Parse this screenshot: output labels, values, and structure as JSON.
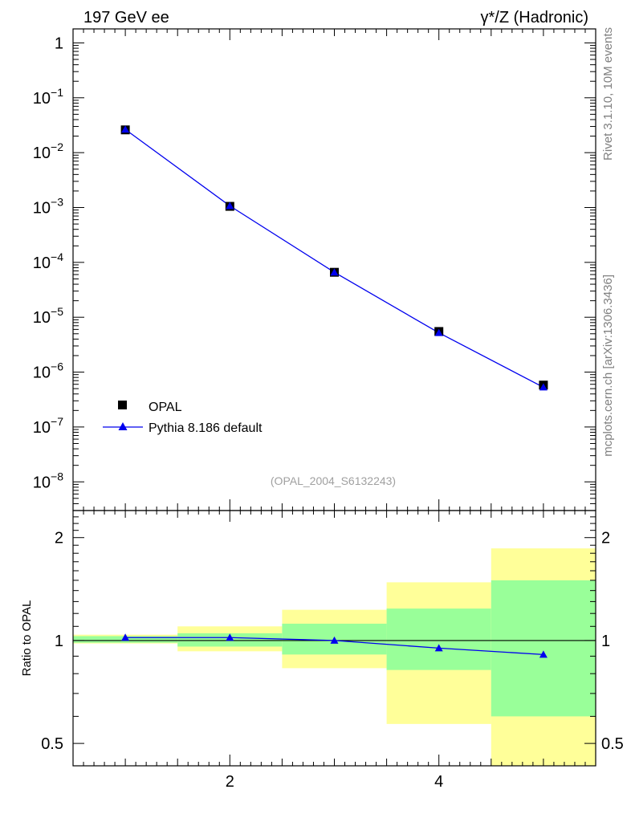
{
  "header": {
    "left_title": "197 GeV ee",
    "right_title": "γ*/Z (Hadronic)"
  },
  "side_labels": {
    "rivet": "Rivet 3.1.10,  10M events",
    "mcplots": "mcplots.cern.ch [arXiv:1306.3436]"
  },
  "analysis_label": "(OPAL_2004_S6132243)",
  "colors": {
    "data": "#000000",
    "mc": "#0000ee",
    "band_inner": "#99ff99",
    "band_outer": "#ffff99"
  },
  "chart_data": [
    {
      "type": "scatter",
      "yscale": "log",
      "xlim": [
        0.5,
        5.5
      ],
      "ylim": [
        3e-09,
        1.8
      ],
      "y_ticks": [
        {
          "value": 1,
          "label": "1"
        },
        {
          "value": 0.1,
          "label": "10",
          "exp": "−1"
        },
        {
          "value": 0.01,
          "label": "10",
          "exp": "−2"
        },
        {
          "value": 0.001,
          "label": "10",
          "exp": "−3"
        },
        {
          "value": 0.0001,
          "label": "10",
          "exp": "−4"
        },
        {
          "value": 1e-05,
          "label": "10",
          "exp": "−5"
        },
        {
          "value": 1e-06,
          "label": "10",
          "exp": "−6"
        },
        {
          "value": 1e-07,
          "label": "10",
          "exp": "−7"
        },
        {
          "value": 1e-08,
          "label": "10",
          "exp": "−8"
        }
      ],
      "legend": {
        "placement": "bottom-left"
      },
      "series": [
        {
          "name": "OPAL",
          "marker": "square",
          "x": [
            1,
            2,
            3,
            4,
            5
          ],
          "y": [
            0.026,
            0.00105,
            6.6e-05,
            5.5e-06,
            5.8e-07
          ]
        },
        {
          "name": "Pythia 8.186 default",
          "marker": "triangle",
          "x": [
            1,
            2,
            3,
            4,
            5
          ],
          "y": [
            0.0265,
            0.00107,
            6.6e-05,
            5.2e-06,
            5.3e-07
          ]
        }
      ]
    },
    {
      "type": "line",
      "yscale": "log",
      "ylabel": "Ratio to OPAL",
      "xlim": [
        0.5,
        5.5
      ],
      "ylim": [
        0.43,
        2.4
      ],
      "x_ticks": [
        {
          "value": 2,
          "label": "2"
        },
        {
          "value": 4,
          "label": "4"
        }
      ],
      "y_ticks": [
        {
          "value": 0.5,
          "label": "0.5"
        },
        {
          "value": 1,
          "label": "1"
        },
        {
          "value": 2,
          "label": "2"
        }
      ],
      "bands": [
        {
          "x": [
            0.5,
            1.5
          ],
          "inner": [
            0.985,
            1.03
          ],
          "outer": [
            0.98,
            1.04
          ]
        },
        {
          "x": [
            1.5,
            2.5
          ],
          "inner": [
            0.96,
            1.05
          ],
          "outer": [
            0.93,
            1.1
          ]
        },
        {
          "x": [
            2.5,
            3.5
          ],
          "inner": [
            0.91,
            1.12
          ],
          "outer": [
            0.83,
            1.23
          ]
        },
        {
          "x": [
            3.5,
            4.5
          ],
          "inner": [
            0.82,
            1.24
          ],
          "outer": [
            0.57,
            1.48
          ]
        },
        {
          "x": [
            4.5,
            5.5
          ],
          "inner": [
            0.6,
            1.5
          ],
          "outer": [
            0.35,
            1.86
          ]
        }
      ],
      "series": [
        {
          "name": "Pythia 8.186 default",
          "x": [
            1,
            2,
            3,
            4,
            5
          ],
          "y": [
            1.02,
            1.02,
            1.0,
            0.95,
            0.91
          ]
        }
      ]
    }
  ]
}
